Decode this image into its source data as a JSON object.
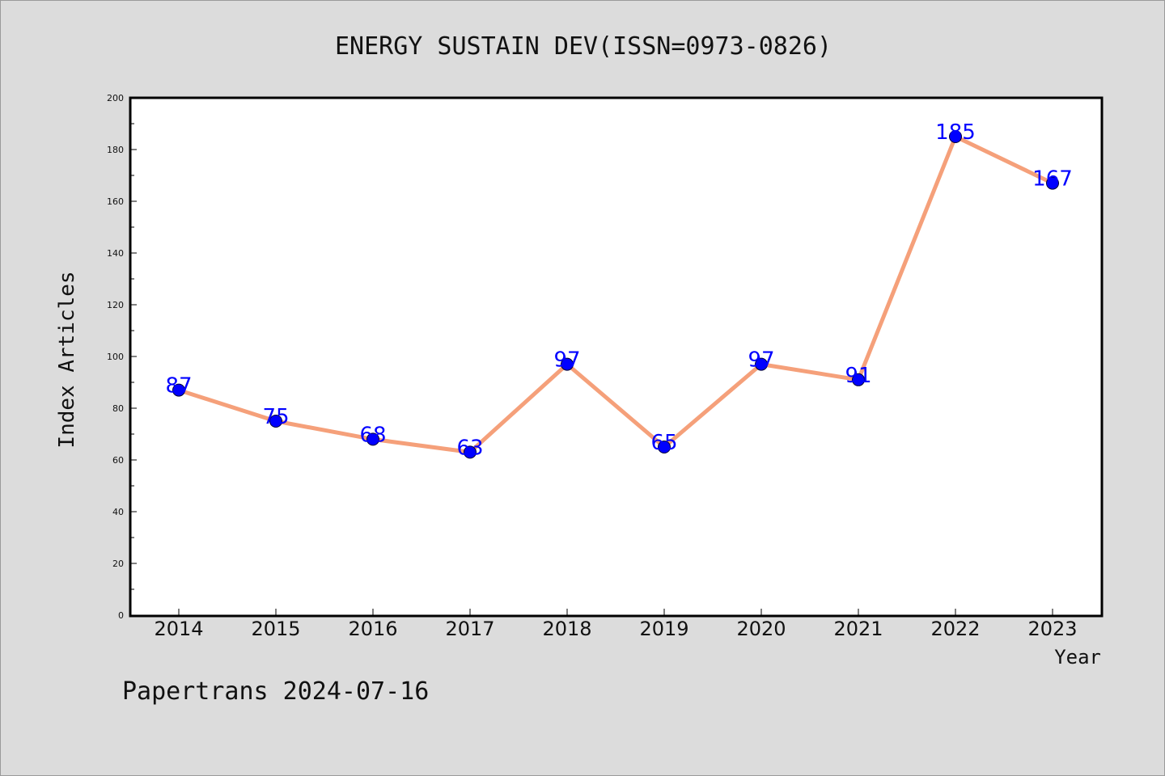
{
  "chart_data": {
    "type": "line",
    "title": "ENERGY SUSTAIN DEV(ISSN=0973-0826)",
    "xlabel": "Year",
    "ylabel": "Index Articles",
    "categories": [
      "2014",
      "2015",
      "2016",
      "2017",
      "2018",
      "2019",
      "2020",
      "2021",
      "2022",
      "2023"
    ],
    "values": [
      87,
      75,
      68,
      63,
      97,
      65,
      97,
      91,
      185,
      167
    ],
    "data_labels": [
      "87",
      "75",
      "68",
      "63",
      "97",
      "65",
      "97",
      "91",
      "185",
      "167"
    ],
    "ylim": [
      0,
      200
    ],
    "yticks": [
      "0",
      "20",
      "40",
      "60",
      "80",
      "100",
      "120",
      "140",
      "160",
      "180",
      "200"
    ],
    "grid": false,
    "legend": "none",
    "colors": {
      "line": "#f5a07a",
      "marker": "#0000ff",
      "data_label": "#0000ff",
      "background": "#dcdcdc",
      "plot_background": "#ffffff"
    }
  },
  "footer": "Papertrans 2024-07-16"
}
